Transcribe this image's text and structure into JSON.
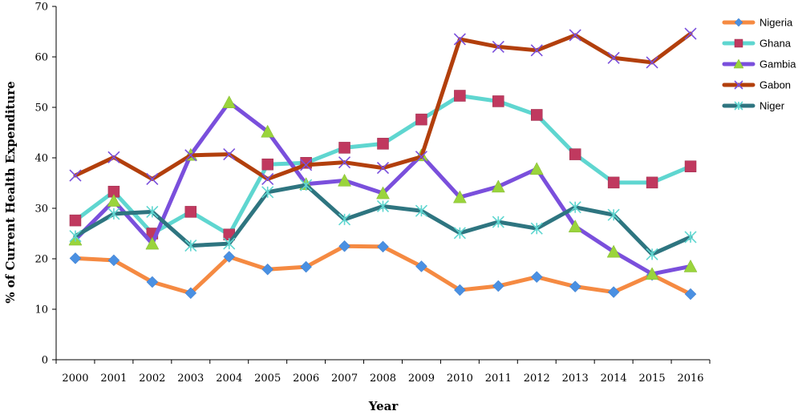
{
  "chart_data": {
    "type": "line",
    "title": "",
    "xlabel": "Year",
    "ylabel": "% of Current Health Expenditure",
    "ylim": [
      0,
      70
    ],
    "yticks": [
      0,
      10,
      20,
      30,
      40,
      50,
      60,
      70
    ],
    "grid": false,
    "legend_position": "top-right",
    "categories": [
      "2000",
      "2001",
      "2002",
      "2003",
      "2004",
      "2005",
      "2006",
      "2007",
      "2008",
      "2009",
      "2010",
      "2011",
      "2012",
      "2013",
      "2014",
      "2015",
      "2016"
    ],
    "series": [
      {
        "name": "Nigeria",
        "color": "#f58a42",
        "marker_color": "#4a90e2",
        "marker": "diamond",
        "values": [
          20.1,
          19.7,
          15.4,
          13.2,
          20.4,
          17.9,
          18.4,
          22.5,
          22.4,
          18.5,
          13.8,
          14.6,
          16.4,
          14.5,
          13.4,
          16.8,
          13.0
        ]
      },
      {
        "name": "Ghana",
        "color": "#5fd6d0",
        "marker_color": "#c0395f",
        "marker": "square",
        "values": [
          27.6,
          33.3,
          25.0,
          29.3,
          24.8,
          38.7,
          39.0,
          42.0,
          42.8,
          47.6,
          52.3,
          51.2,
          48.5,
          40.7,
          35.1,
          35.1,
          38.3
        ]
      },
      {
        "name": "Gambia",
        "color": "#7a4fdc",
        "marker_color": "#9ad43c",
        "marker": "triangle",
        "values": [
          23.8,
          31.5,
          23.0,
          40.6,
          51.0,
          45.2,
          34.8,
          35.5,
          33.0,
          40.5,
          32.2,
          34.3,
          37.8,
          26.4,
          21.4,
          17.0,
          18.5
        ]
      },
      {
        "name": "Gabon",
        "color": "#b23f0c",
        "marker_color": "#7a4fdc",
        "marker": "x",
        "values": [
          36.5,
          40.1,
          35.8,
          40.5,
          40.7,
          35.8,
          38.6,
          39.1,
          38.0,
          40.2,
          63.5,
          62.0,
          61.3,
          64.3,
          59.8,
          58.9,
          64.6
        ]
      },
      {
        "name": "Niger",
        "color": "#2e7580",
        "marker_color": "#5fd6d0",
        "marker": "asterisk",
        "values": [
          24.5,
          28.9,
          29.3,
          22.6,
          23.0,
          33.2,
          34.6,
          27.8,
          30.4,
          29.5,
          25.1,
          27.3,
          26.0,
          30.2,
          28.7,
          20.9,
          24.3
        ]
      }
    ]
  }
}
